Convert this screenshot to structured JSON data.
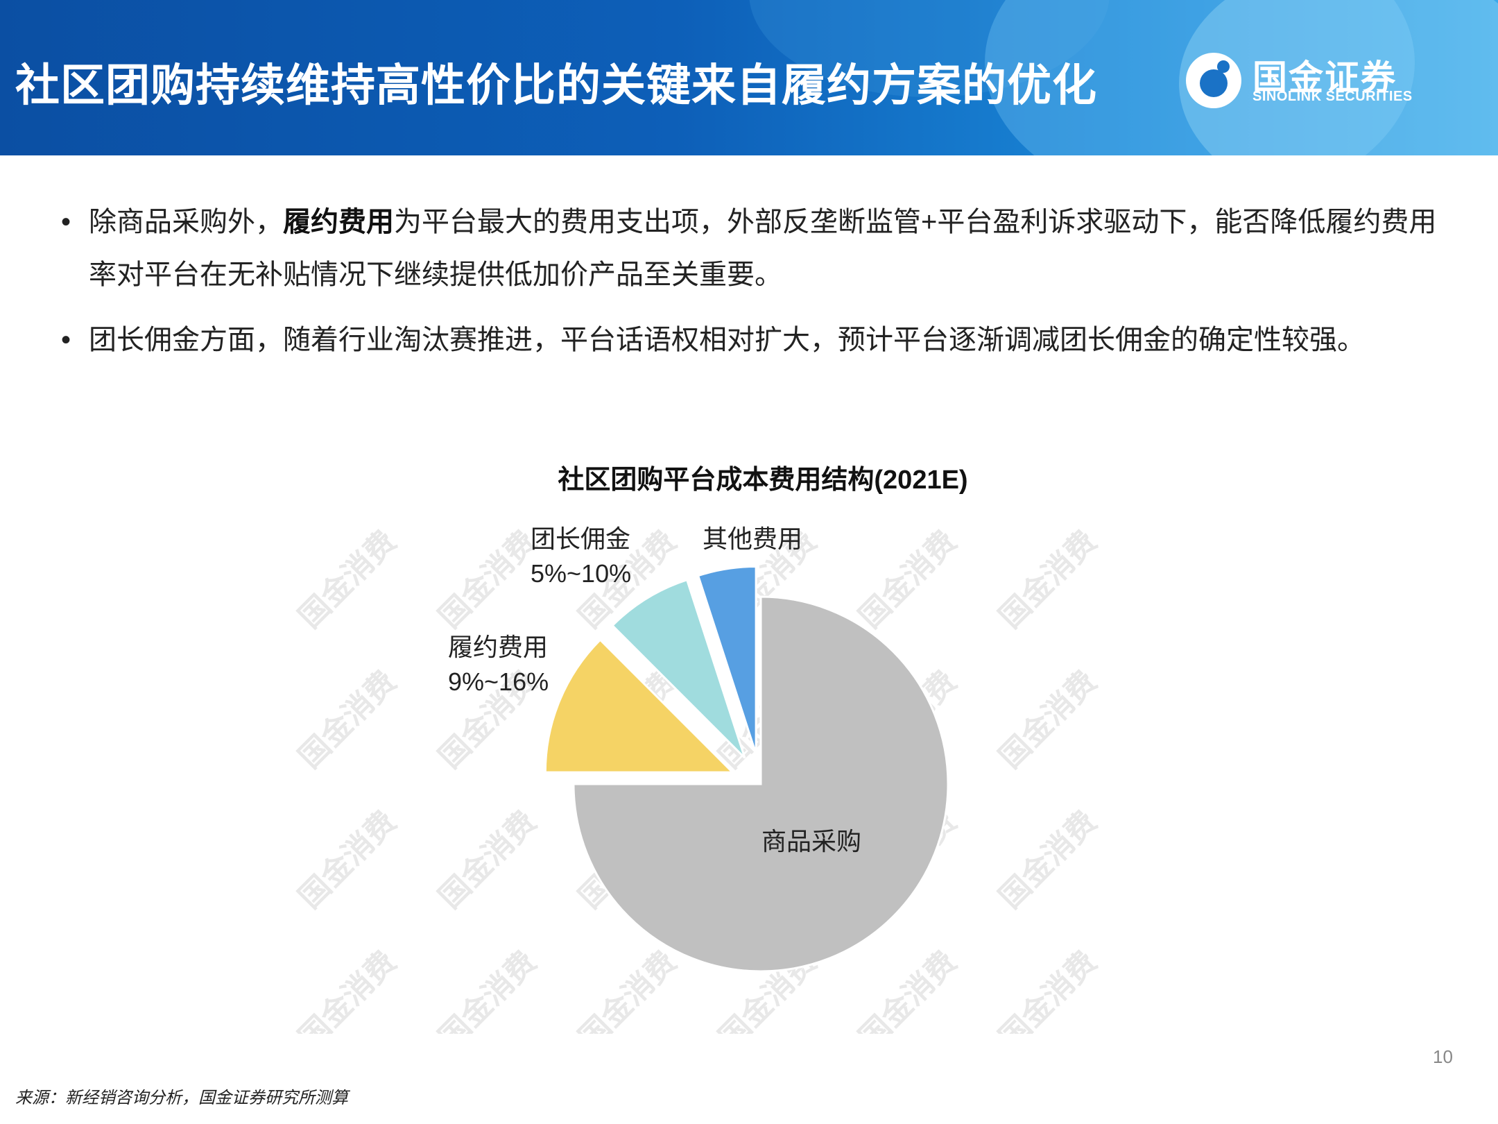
{
  "header": {
    "title": "社区团购持续维持高性价比的关键来自履约方案的优化",
    "logo_cn": "国金证券",
    "logo_en": "SINOLINK SECURITIES"
  },
  "bullets": [
    {
      "marker": "•",
      "before": "除商品采购外，",
      "bold": "履约费用",
      "after": "为平台最大的费用支出项，外部反垄断监管+平台盈利诉求驱动下，能否降低履约费用率对平台在无补贴情况下继续提供低加价产品至关重要。"
    },
    {
      "marker": "•",
      "text": "团长佣金方面，随着行业淘汰赛推进，平台话语权相对扩大，预计平台逐渐调减团长佣金的确定性较强。"
    }
  ],
  "watermark_text": "国金消费",
  "chart_data": {
    "type": "pie",
    "title": "社区团购平台成本费用结构(2021E)",
    "slices": [
      {
        "name": "其他费用",
        "range_label": "",
        "value": 5,
        "color": "#579fe2",
        "exploded": true
      },
      {
        "name": "团长佣金",
        "range_label": "5%~10%",
        "value": 7.5,
        "color": "#a0dcde",
        "exploded": true
      },
      {
        "name": "履约费用",
        "range_label": "9%~16%",
        "value": 12.5,
        "color": "#f5d365",
        "exploded": true
      },
      {
        "name": "商品采购",
        "range_label": "",
        "value": 75,
        "color": "#c0c0c0",
        "exploded": false
      }
    ]
  },
  "page_number": "10",
  "source": "来源：新经销咨询分析，国金证券研究所测算"
}
